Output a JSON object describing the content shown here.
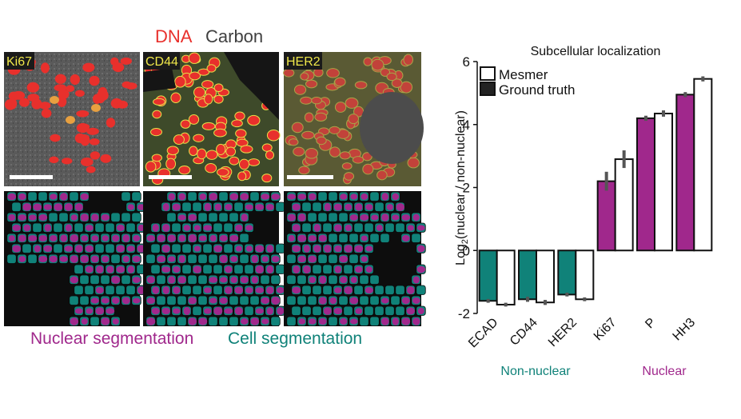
{
  "figure": {
    "legend_top": {
      "dna": "DNA",
      "carbon": "Carbon"
    },
    "panels": [
      {
        "label": "Ki67"
      },
      {
        "label": "CD44"
      },
      {
        "label": "HER2"
      }
    ],
    "legend_bottom": {
      "nuclear": "Nuclear segmentation",
      "cell": "Cell segmentation"
    },
    "colors": {
      "dna_red": "#e8302c",
      "marker_yellow": "#e6df4a",
      "nuclear_magenta": "#a0288c",
      "cell_teal": "#108279",
      "background_gray": "#555555"
    }
  },
  "chart_data": {
    "type": "bar",
    "title": "Subcellular localization",
    "ylabel_main": "Log",
    "ylabel_sub": "2",
    "ylabel_rest": "(nuclear / non-nuclear)",
    "ylim": [
      -2,
      6
    ],
    "yticks": [
      -2,
      0,
      2,
      4,
      6
    ],
    "categories": [
      "ECAD",
      "CD44",
      "HER2",
      "Ki67",
      "P",
      "HH3"
    ],
    "groups": [
      {
        "label": "Non-nuclear",
        "color": "#108279",
        "categories": [
          "ECAD",
          "CD44",
          "HER2"
        ]
      },
      {
        "label": "Nuclear",
        "color": "#a0288c",
        "categories": [
          "Ki67",
          "P",
          "HH3"
        ]
      }
    ],
    "series": [
      {
        "name": "Ground truth",
        "values": [
          -1.6,
          -1.55,
          -1.4,
          2.2,
          4.2,
          4.95
        ],
        "errors": [
          0.06,
          0.08,
          0.06,
          0.3,
          0.08,
          0.08
        ]
      },
      {
        "name": "Mesmer",
        "values": [
          -1.72,
          -1.65,
          -1.55,
          2.9,
          4.35,
          5.45
        ],
        "errors": [
          0.06,
          0.08,
          0.06,
          0.28,
          0.1,
          0.08
        ]
      }
    ],
    "legend": [
      "Mesmer",
      "Ground truth"
    ],
    "legend_position": "top-left",
    "grid": false
  }
}
